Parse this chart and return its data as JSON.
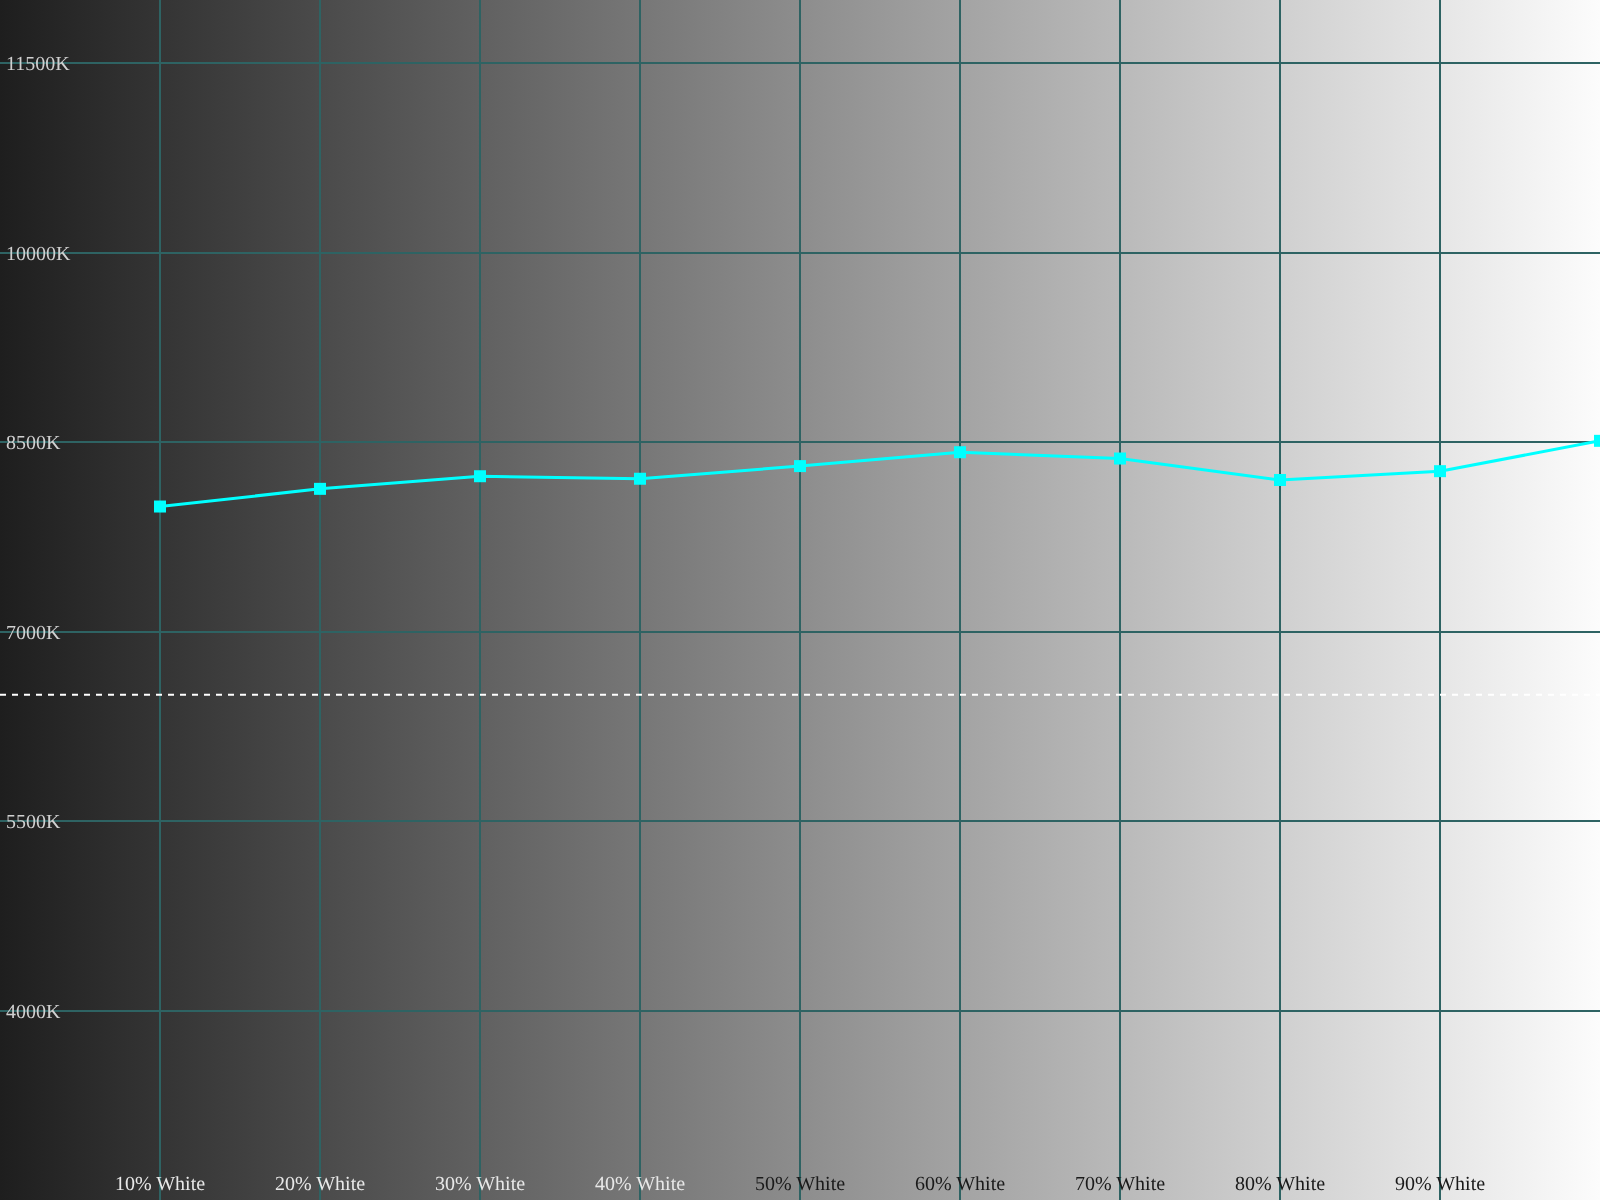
{
  "chart_data": {
    "type": "line",
    "x": [
      10,
      20,
      30,
      40,
      50,
      60,
      70,
      80,
      90,
      100
    ],
    "series": [
      {
        "color": "#00ffff",
        "values": [
          7990,
          8130,
          8230,
          8210,
          8310,
          8420,
          8370,
          8200,
          8270,
          8510
        ]
      }
    ],
    "xlim": [
      0,
      100
    ],
    "xticks": [
      {
        "value": 0,
        "label": null
      },
      {
        "value": 10,
        "label": "10% White"
      },
      {
        "value": 20,
        "label": "20% White"
      },
      {
        "value": 30,
        "label": "30% White"
      },
      {
        "value": 40,
        "label": "40% White"
      },
      {
        "value": 50,
        "label": "50% White"
      },
      {
        "value": 60,
        "label": "60% White"
      },
      {
        "value": 70,
        "label": "70% White"
      },
      {
        "value": 80,
        "label": "80% White"
      },
      {
        "value": 90,
        "label": "90% White"
      },
      {
        "value": 100,
        "label": null
      }
    ],
    "ylim": [
      2500,
      12000
    ],
    "yticks": [
      {
        "value": 4000,
        "label": "4000K"
      },
      {
        "value": 5500,
        "label": "5500K"
      },
      {
        "value": 7000,
        "label": "7000K"
      },
      {
        "value": 8500,
        "label": "8500K"
      },
      {
        "value": 10000,
        "label": "10000K"
      },
      {
        "value": 11500,
        "label": "11500K"
      }
    ],
    "grid": true,
    "marker": "square",
    "line_style": "solid",
    "ref_lines": [
      {
        "axis": "y",
        "value": 6500,
        "color": "#ffffff",
        "line_style": "dotted"
      }
    ]
  }
}
